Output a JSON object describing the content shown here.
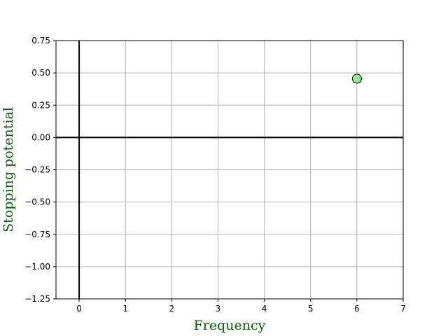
{
  "chart_data": {
    "type": "scatter",
    "title": "",
    "xlabel": "Frequency",
    "ylabel": "Stopping potential",
    "xlim": [
      -0.5,
      7
    ],
    "ylim": [
      -1.25,
      0.75
    ],
    "xticks": [
      0,
      1,
      2,
      3,
      4,
      5,
      6,
      7
    ],
    "xtick_labels": [
      "0",
      "1",
      "2",
      "3",
      "4",
      "5",
      "6",
      "7"
    ],
    "yticks": [
      0.75,
      0.5,
      0.25,
      0.0,
      -0.25,
      -0.5,
      -0.75,
      -1.0,
      -1.25
    ],
    "ytick_labels": [
      "0.75",
      "0.50",
      "0.25",
      "0.00",
      "−0.25",
      "−0.50",
      "−0.75",
      "−1.00",
      "−1.25"
    ],
    "grid": true,
    "reference_lines": {
      "x": 0,
      "y": 0
    },
    "series": [
      {
        "x": [
          6.0
        ],
        "y": [
          0.455
        ]
      }
    ],
    "colors": {
      "marker_fill": "#90ee90",
      "marker_edge": "#000000",
      "axis_label": "#006400",
      "grid": "#b0b0b0"
    }
  }
}
